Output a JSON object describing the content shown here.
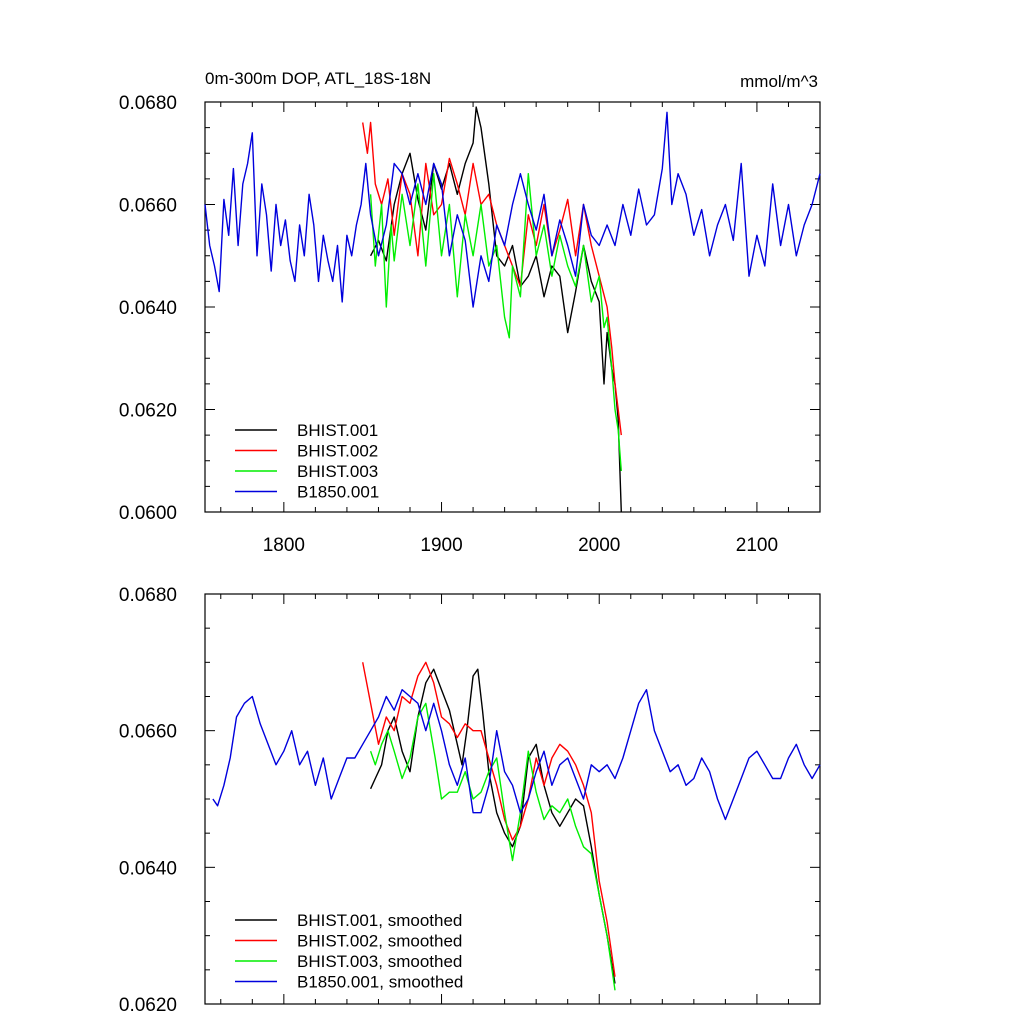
{
  "panels": [
    {
      "title_left": "0m-300m DOP, ATL_18S-18N",
      "title_right": "mmol/m^3",
      "chart_data": {
        "type": "line",
        "title": "0m-300m DOP, ATL_18S-18N",
        "units": "mmol/m^3",
        "xlim": [
          1750,
          2140
        ],
        "ylim": [
          0.06,
          0.068
        ],
        "x_ticks": [
          1800,
          1900,
          2000,
          2100
        ],
        "x_tick_labels": [
          "1800",
          "1900",
          "2000",
          "2100"
        ],
        "y_ticks": [
          0.06,
          0.062,
          0.064,
          0.066,
          0.068
        ],
        "y_tick_labels": [
          "0.0600",
          "0.0620",
          "0.0640",
          "0.0660",
          "0.0680"
        ],
        "legend_position": "bottom-left",
        "series": [
          {
            "name": "BHIST.001",
            "color": "#000000",
            "x": [
              1855,
              1860,
              1865,
              1870,
              1875,
              1880,
              1885,
              1890,
              1895,
              1900,
              1905,
              1910,
              1915,
              1920,
              1922,
              1925,
              1930,
              1935,
              1940,
              1945,
              1950,
              1955,
              1960,
              1965,
              1970,
              1975,
              1980,
              1985,
              1990,
              1995,
              2000,
              2003,
              2005,
              2008,
              2010,
              2012,
              2014
            ],
            "y": [
              0.065,
              0.0653,
              0.0649,
              0.066,
              0.0666,
              0.067,
              0.0661,
              0.0655,
              0.0668,
              0.0663,
              0.0668,
              0.0662,
              0.0668,
              0.0672,
              0.0679,
              0.0675,
              0.0664,
              0.065,
              0.0648,
              0.0652,
              0.0644,
              0.0646,
              0.065,
              0.0642,
              0.0648,
              0.0646,
              0.0635,
              0.0643,
              0.0652,
              0.0645,
              0.0641,
              0.0625,
              0.0635,
              0.0628,
              0.0625,
              0.0618,
              0.06
            ]
          },
          {
            "name": "BHIST.002",
            "color": "#ff0000",
            "x": [
              1850,
              1853,
              1855,
              1858,
              1862,
              1866,
              1870,
              1875,
              1880,
              1885,
              1890,
              1895,
              1900,
              1905,
              1910,
              1915,
              1920,
              1925,
              1930,
              1935,
              1940,
              1945,
              1950,
              1955,
              1960,
              1965,
              1970,
              1975,
              1980,
              1985,
              1990,
              1995,
              2000,
              2005,
              2008,
              2010,
              2012,
              2014
            ],
            "y": [
              0.0676,
              0.067,
              0.0676,
              0.0664,
              0.066,
              0.0665,
              0.0654,
              0.0666,
              0.0662,
              0.065,
              0.0668,
              0.0658,
              0.066,
              0.0669,
              0.0664,
              0.0658,
              0.0668,
              0.066,
              0.0662,
              0.0656,
              0.0652,
              0.0648,
              0.0644,
              0.0658,
              0.0652,
              0.066,
              0.065,
              0.0655,
              0.0661,
              0.065,
              0.066,
              0.0652,
              0.0646,
              0.064,
              0.0632,
              0.0625,
              0.062,
              0.0615
            ]
          },
          {
            "name": "BHIST.003",
            "color": "#00ee00",
            "x": [
              1855,
              1858,
              1862,
              1865,
              1868,
              1870,
              1875,
              1880,
              1885,
              1890,
              1895,
              1900,
              1905,
              1910,
              1915,
              1920,
              1925,
              1930,
              1935,
              1940,
              1943,
              1945,
              1950,
              1955,
              1960,
              1965,
              1970,
              1975,
              1980,
              1985,
              1990,
              1995,
              2000,
              2003,
              2005,
              2008,
              2010,
              2012,
              2014
            ],
            "y": [
              0.0662,
              0.0648,
              0.066,
              0.064,
              0.0656,
              0.0649,
              0.0662,
              0.0652,
              0.0664,
              0.0648,
              0.0666,
              0.065,
              0.066,
              0.0642,
              0.0658,
              0.065,
              0.066,
              0.0648,
              0.0652,
              0.0638,
              0.0634,
              0.0648,
              0.0642,
              0.0666,
              0.065,
              0.0656,
              0.0646,
              0.0654,
              0.0648,
              0.0644,
              0.0652,
              0.0641,
              0.0646,
              0.0636,
              0.0638,
              0.0628,
              0.062,
              0.0616,
              0.0608
            ]
          },
          {
            "name": "B1850.001",
            "color": "#0000dd",
            "x": [
              1750,
              1753,
              1756,
              1759,
              1762,
              1765,
              1768,
              1771,
              1774,
              1777,
              1780,
              1783,
              1786,
              1789,
              1792,
              1795,
              1798,
              1801,
              1804,
              1807,
              1810,
              1813,
              1816,
              1819,
              1822,
              1825,
              1828,
              1831,
              1834,
              1837,
              1840,
              1843,
              1846,
              1849,
              1852,
              1855,
              1860,
              1865,
              1870,
              1875,
              1880,
              1885,
              1890,
              1895,
              1900,
              1905,
              1910,
              1915,
              1920,
              1925,
              1930,
              1935,
              1940,
              1945,
              1950,
              1955,
              1960,
              1965,
              1970,
              1975,
              1980,
              1985,
              1990,
              1995,
              2000,
              2005,
              2010,
              2015,
              2020,
              2025,
              2030,
              2035,
              2040,
              2043,
              2046,
              2050,
              2055,
              2060,
              2065,
              2070,
              2075,
              2080,
              2085,
              2090,
              2095,
              2100,
              2105,
              2110,
              2115,
              2120,
              2125,
              2130,
              2135,
              2140
            ],
            "y": [
              0.066,
              0.0652,
              0.0648,
              0.0643,
              0.0661,
              0.0654,
              0.0667,
              0.0652,
              0.0664,
              0.0668,
              0.0674,
              0.065,
              0.0664,
              0.0658,
              0.0647,
              0.066,
              0.0652,
              0.0657,
              0.0649,
              0.0645,
              0.0656,
              0.065,
              0.0662,
              0.0656,
              0.0645,
              0.0654,
              0.0649,
              0.0645,
              0.0652,
              0.0641,
              0.0654,
              0.065,
              0.0656,
              0.066,
              0.0668,
              0.0658,
              0.065,
              0.0656,
              0.0668,
              0.0666,
              0.066,
              0.0666,
              0.066,
              0.0668,
              0.0664,
              0.065,
              0.0658,
              0.0653,
              0.064,
              0.065,
              0.0645,
              0.0656,
              0.0652,
              0.066,
              0.0666,
              0.066,
              0.0655,
              0.0662,
              0.065,
              0.0657,
              0.0652,
              0.0646,
              0.066,
              0.0654,
              0.0652,
              0.0656,
              0.0652,
              0.066,
              0.0654,
              0.0663,
              0.0656,
              0.0658,
              0.0667,
              0.0678,
              0.066,
              0.0666,
              0.0662,
              0.0654,
              0.0659,
              0.065,
              0.0656,
              0.066,
              0.0653,
              0.0668,
              0.0646,
              0.0654,
              0.0648,
              0.0664,
              0.0652,
              0.066,
              0.065,
              0.0656,
              0.066,
              0.0666
            ]
          }
        ]
      },
      "legend": [
        "BHIST.001",
        "BHIST.002",
        "BHIST.003",
        "B1850.001"
      ]
    },
    {
      "title_left": "",
      "title_right": "",
      "chart_data": {
        "type": "line",
        "xlim": [
          1750,
          2140
        ],
        "ylim": [
          0.062,
          0.068
        ],
        "x_ticks": [
          1800,
          1900,
          2000,
          2100
        ],
        "x_tick_labels": [
          "",
          "",
          "",
          ""
        ],
        "y_ticks": [
          0.062,
          0.064,
          0.066,
          0.068
        ],
        "y_tick_labels": [
          "0.0620",
          "0.0640",
          "0.0660",
          "0.0680"
        ],
        "legend_position": "bottom-left",
        "series": [
          {
            "name": "BHIST.001, smoothed",
            "color": "#000000",
            "x": [
              1855,
              1858,
              1862,
              1866,
              1870,
              1875,
              1880,
              1885,
              1890,
              1895,
              1900,
              1905,
              1910,
              1913,
              1916,
              1920,
              1923,
              1926,
              1930,
              1935,
              1940,
              1945,
              1950,
              1955,
              1960,
              1965,
              1970,
              1975,
              1980,
              1985,
              1990,
              1995,
              2000,
              2005,
              2010
            ],
            "y": [
              0.06515,
              0.0653,
              0.0655,
              0.066,
              0.0662,
              0.0657,
              0.0654,
              0.0662,
              0.0667,
              0.0669,
              0.0666,
              0.0663,
              0.0658,
              0.0655,
              0.066,
              0.0668,
              0.0669,
              0.0663,
              0.0654,
              0.0648,
              0.0645,
              0.0643,
              0.0646,
              0.0656,
              0.0658,
              0.0652,
              0.0648,
              0.0646,
              0.0648,
              0.065,
              0.0649,
              0.0643,
              0.0636,
              0.063,
              0.0623
            ]
          },
          {
            "name": "BHIST.002, smoothed",
            "color": "#ff0000",
            "x": [
              1850,
              1855,
              1860,
              1865,
              1870,
              1875,
              1880,
              1885,
              1890,
              1895,
              1900,
              1905,
              1910,
              1915,
              1920,
              1925,
              1930,
              1935,
              1940,
              1945,
              1950,
              1955,
              1960,
              1965,
              1970,
              1975,
              1980,
              1985,
              1990,
              1995,
              2000,
              2005,
              2010
            ],
            "y": [
              0.067,
              0.0664,
              0.0658,
              0.0662,
              0.066,
              0.0665,
              0.0664,
              0.0668,
              0.067,
              0.0667,
              0.0662,
              0.0661,
              0.0659,
              0.0661,
              0.066,
              0.066,
              0.0656,
              0.0652,
              0.0647,
              0.0644,
              0.0646,
              0.065,
              0.0656,
              0.0652,
              0.0656,
              0.0658,
              0.0657,
              0.0655,
              0.0652,
              0.0648,
              0.0638,
              0.0632,
              0.0624
            ]
          },
          {
            "name": "BHIST.003, smoothed",
            "color": "#00ee00",
            "x": [
              1855,
              1858,
              1862,
              1866,
              1870,
              1875,
              1880,
              1885,
              1890,
              1893,
              1896,
              1900,
              1905,
              1910,
              1915,
              1920,
              1925,
              1930,
              1935,
              1940,
              1945,
              1950,
              1955,
              1960,
              1965,
              1970,
              1975,
              1980,
              1985,
              1990,
              1995,
              2000,
              2005,
              2010
            ],
            "y": [
              0.0657,
              0.0655,
              0.0658,
              0.066,
              0.0657,
              0.0653,
              0.0656,
              0.0662,
              0.0664,
              0.066,
              0.0656,
              0.065,
              0.0651,
              0.0651,
              0.0654,
              0.065,
              0.0651,
              0.0654,
              0.0656,
              0.0648,
              0.0641,
              0.0648,
              0.0657,
              0.0651,
              0.0647,
              0.0649,
              0.0648,
              0.065,
              0.0646,
              0.0643,
              0.0642,
              0.0636,
              0.063,
              0.0622
            ]
          },
          {
            "name": "B1850.001, smoothed",
            "color": "#0000dd",
            "x": [
              1755,
              1758,
              1762,
              1766,
              1770,
              1775,
              1780,
              1785,
              1790,
              1795,
              1800,
              1805,
              1810,
              1815,
              1820,
              1825,
              1830,
              1835,
              1840,
              1845,
              1850,
              1855,
              1860,
              1865,
              1870,
              1875,
              1880,
              1885,
              1890,
              1895,
              1900,
              1905,
              1910,
              1915,
              1920,
              1925,
              1930,
              1935,
              1940,
              1945,
              1950,
              1955,
              1960,
              1965,
              1970,
              1975,
              1980,
              1985,
              1990,
              1995,
              2000,
              2005,
              2010,
              2015,
              2020,
              2025,
              2030,
              2035,
              2040,
              2045,
              2050,
              2055,
              2060,
              2065,
              2070,
              2075,
              2080,
              2085,
              2090,
              2095,
              2100,
              2105,
              2110,
              2115,
              2120,
              2125,
              2130,
              2135,
              2140
            ],
            "y": [
              0.065,
              0.0649,
              0.0652,
              0.0656,
              0.0662,
              0.0664,
              0.0665,
              0.0661,
              0.0658,
              0.0655,
              0.0657,
              0.066,
              0.0655,
              0.0657,
              0.0652,
              0.0656,
              0.065,
              0.0653,
              0.0656,
              0.0656,
              0.0658,
              0.066,
              0.0662,
              0.0665,
              0.0663,
              0.0666,
              0.0665,
              0.0664,
              0.066,
              0.0664,
              0.066,
              0.0655,
              0.0652,
              0.0656,
              0.0648,
              0.0648,
              0.0652,
              0.066,
              0.0654,
              0.0652,
              0.0648,
              0.065,
              0.0654,
              0.0657,
              0.0652,
              0.0655,
              0.0656,
              0.0653,
              0.065,
              0.0655,
              0.0654,
              0.0655,
              0.0653,
              0.0656,
              0.066,
              0.0664,
              0.0666,
              0.066,
              0.0657,
              0.0654,
              0.0655,
              0.0652,
              0.0653,
              0.0656,
              0.0654,
              0.065,
              0.0647,
              0.065,
              0.0653,
              0.0656,
              0.0657,
              0.0655,
              0.0653,
              0.0653,
              0.0656,
              0.0658,
              0.0655,
              0.0653,
              0.0655
            ]
          }
        ]
      },
      "legend": [
        "BHIST.001, smoothed",
        "BHIST.002, smoothed",
        "BHIST.003, smoothed",
        "B1850.001, smoothed"
      ]
    }
  ]
}
